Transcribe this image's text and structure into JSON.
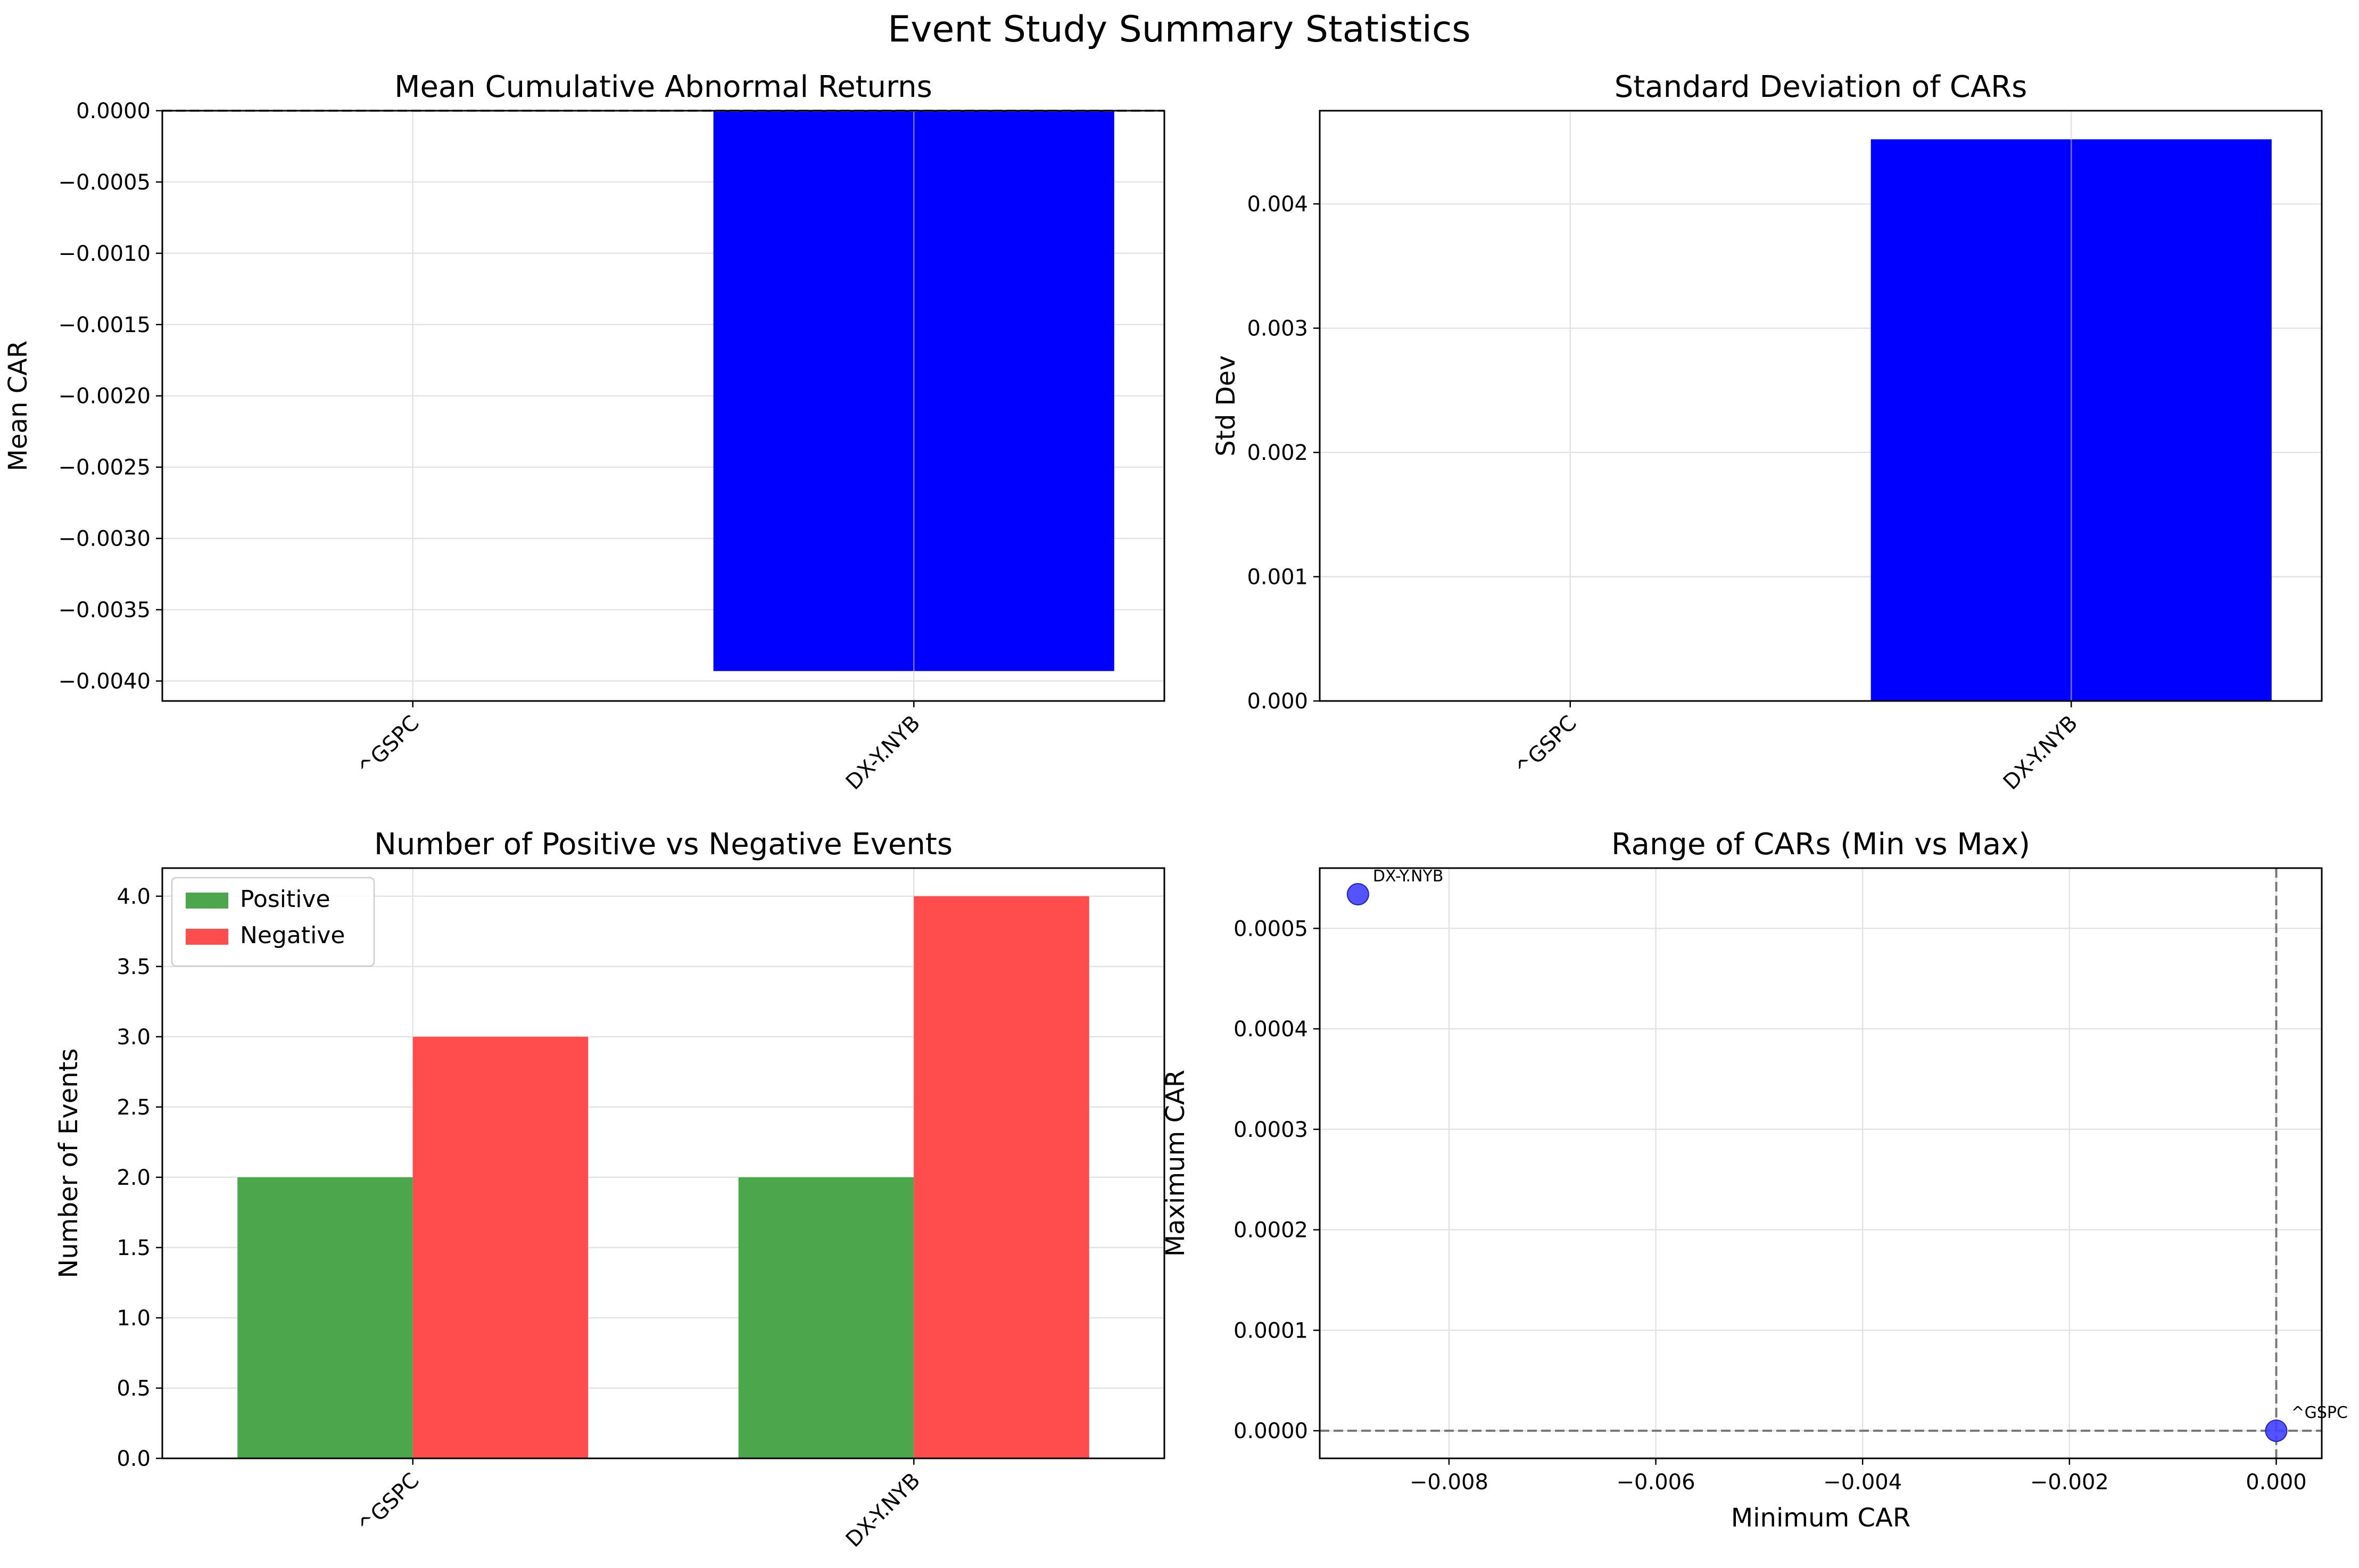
{
  "suptitle": "Event Study Summary Statistics",
  "colors": {
    "bar": "#0000ff",
    "positive": "#4ca64c",
    "negative": "#ff4d4d",
    "scatter": "#4040ff",
    "grid": "#e3e3e3",
    "refline": "#777777"
  },
  "chart_data": [
    {
      "type": "bar",
      "title": "Mean Cumulative Abnormal Returns",
      "xlabel": "",
      "ylabel": "Mean CAR",
      "categories": [
        "^GSPC",
        "DX-Y.NYB"
      ],
      "values": [
        0.0,
        -0.00393
      ],
      "ylim": [
        -0.00414,
        0.0
      ],
      "yticks": [
        0.0,
        -0.0005,
        -0.001,
        -0.0015,
        -0.002,
        -0.0025,
        -0.003,
        -0.0035,
        -0.004
      ],
      "ytick_labels": [
        "0.0000",
        "−0.0005",
        "−0.0010",
        "−0.0015",
        "−0.0020",
        "−0.0025",
        "−0.0030",
        "−0.0035",
        "−0.0040"
      ],
      "hline": 0.0,
      "grid": true
    },
    {
      "type": "bar",
      "title": "Standard Deviation of CARs",
      "xlabel": "",
      "ylabel": "Std Dev",
      "categories": [
        "^GSPC",
        "DX-Y.NYB"
      ],
      "values": [
        0.0,
        0.00452
      ],
      "ylim": [
        0.0,
        0.00475
      ],
      "yticks": [
        0.0,
        0.001,
        0.002,
        0.003,
        0.004
      ],
      "ytick_labels": [
        "0.000",
        "0.001",
        "0.002",
        "0.003",
        "0.004"
      ],
      "grid": true
    },
    {
      "type": "bar",
      "title": "Number of Positive vs Negative Events",
      "xlabel": "",
      "ylabel": "Number of Events",
      "categories": [
        "^GSPC",
        "DX-Y.NYB"
      ],
      "series": [
        {
          "name": "Positive",
          "values": [
            2,
            2
          ]
        },
        {
          "name": "Negative",
          "values": [
            3,
            4
          ]
        }
      ],
      "ylim": [
        0,
        4.2
      ],
      "yticks": [
        0,
        0.5,
        1,
        1.5,
        2,
        2.5,
        3,
        3.5,
        4
      ],
      "ytick_labels": [
        "0.0",
        "0.5",
        "1.0",
        "1.5",
        "2.0",
        "2.5",
        "3.0",
        "3.5",
        "4.0"
      ],
      "legend": "top-left",
      "grid": true
    },
    {
      "type": "scatter",
      "title": "Range of CARs (Min vs Max)",
      "xlabel": "Minimum CAR",
      "ylabel": "Maximum CAR",
      "points": [
        {
          "label": "DX-Y.NYB",
          "x": -0.00888,
          "y": 0.000534
        },
        {
          "label": "^GSPC",
          "x": 0.0,
          "y": 0.0
        }
      ],
      "xlim": [
        -0.00925,
        0.00044
      ],
      "ylim": [
        -2.75e-05,
        0.00056
      ],
      "xticks": [
        -0.008,
        -0.006,
        -0.004,
        -0.002,
        0.0
      ],
      "xtick_labels": [
        "−0.008",
        "−0.006",
        "−0.004",
        "−0.002",
        "0.000"
      ],
      "yticks": [
        0.0,
        0.0001,
        0.0002,
        0.0003,
        0.0004,
        0.0005
      ],
      "ytick_labels": [
        "0.0000",
        "0.0001",
        "0.0002",
        "0.0003",
        "0.0004",
        "0.0005"
      ],
      "hline": 0.0,
      "vline": 0.0,
      "grid": true
    }
  ]
}
